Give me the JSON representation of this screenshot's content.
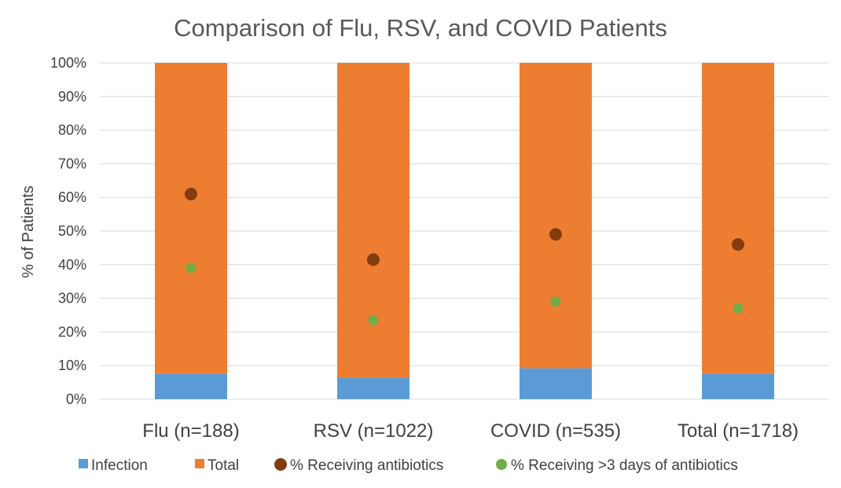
{
  "chart_data": {
    "type": "bar",
    "stacked": true,
    "title": "Comparison of Flu, RSV, and COVID Patients",
    "xlabel": "",
    "ylabel": "% of Patients",
    "categories": [
      "Flu (n=188)",
      "RSV (n=1022)",
      "COVID (n=535)",
      "Total (n=1718)"
    ],
    "ylim": [
      0,
      100
    ],
    "y_ticks": [
      "0%",
      "10%",
      "20%",
      "30%",
      "40%",
      "50%",
      "60%",
      "70%",
      "80%",
      "90%",
      "100%"
    ],
    "grid": true,
    "legend_position": "bottom",
    "series": [
      {
        "name": "Infection",
        "kind": "bar",
        "color": "#5b9bd5",
        "values": [
          7.5,
          6.3,
          9.2,
          7.5
        ]
      },
      {
        "name": "Total",
        "kind": "bar",
        "color": "#ed7d31",
        "values": [
          92.5,
          93.7,
          90.8,
          92.5
        ]
      },
      {
        "name": "% Receiving antibiotics",
        "kind": "marker",
        "color": "#843c0c",
        "values": [
          61,
          41.5,
          49,
          46
        ]
      },
      {
        "name": "% Receiving >3 days of antibiotics",
        "kind": "marker",
        "color": "#70ad47",
        "values": [
          39,
          23.5,
          29,
          27
        ]
      }
    ]
  }
}
